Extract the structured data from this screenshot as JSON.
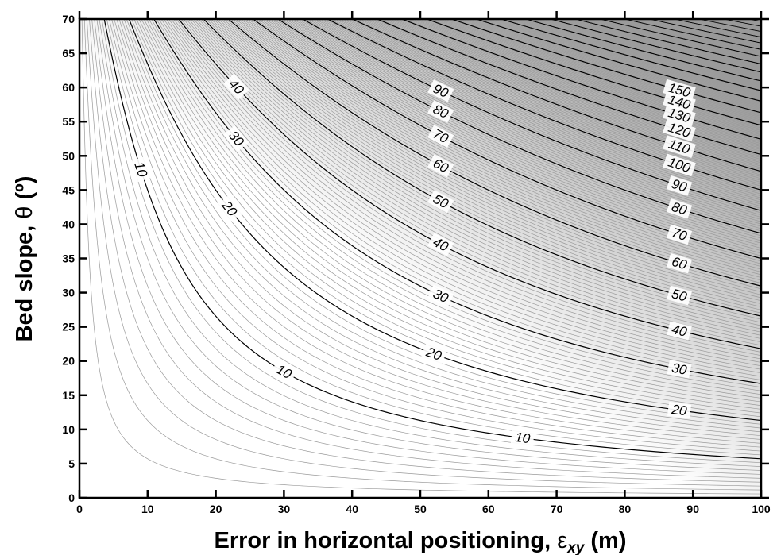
{
  "chart_data": {
    "type": "contour",
    "xlabel_main": "Error in horizontal positioning, ",
    "xlabel_symbol": "ε",
    "xlabel_subscript": "xy",
    "xlabel_unit": " (m)",
    "ylabel_main": "Bed slope, ",
    "ylabel_symbol": "θ",
    "ylabel_unit": " (º)",
    "xlim": [
      0,
      100
    ],
    "ylim": [
      0,
      70
    ],
    "x_ticks": [
      0,
      10,
      20,
      30,
      40,
      50,
      60,
      70,
      80,
      90,
      100
    ],
    "y_ticks": [
      0,
      5,
      10,
      15,
      20,
      25,
      30,
      35,
      40,
      45,
      50,
      55,
      60,
      65,
      70
    ],
    "contour_function": "z = x * tan(theta)",
    "minor_interval": 1,
    "major_interval": 10,
    "contour_labels": [
      {
        "text": "10",
        "x": 65,
        "level": 10
      },
      {
        "text": "20",
        "x": 88,
        "level": 20
      },
      {
        "text": "30",
        "x": 88,
        "level": 30
      },
      {
        "text": "40",
        "x": 88,
        "level": 40
      },
      {
        "text": "50",
        "x": 88,
        "level": 50
      },
      {
        "text": "60",
        "x": 88,
        "level": 60
      },
      {
        "text": "70",
        "x": 88,
        "level": 70
      },
      {
        "text": "80",
        "x": 88,
        "level": 80
      },
      {
        "text": "90",
        "x": 88,
        "level": 90
      },
      {
        "text": "100",
        "x": 88,
        "level": 100
      },
      {
        "text": "110",
        "x": 88,
        "level": 110
      },
      {
        "text": "120",
        "x": 88,
        "level": 120
      },
      {
        "text": "130",
        "x": 88,
        "level": 130
      },
      {
        "text": "140",
        "x": 88,
        "level": 140
      },
      {
        "text": "150",
        "x": 88,
        "level": 150
      },
      {
        "text": "10",
        "x": 30,
        "level": 10
      },
      {
        "text": "20",
        "x": 52,
        "level": 20
      },
      {
        "text": "30",
        "x": 53,
        "level": 30
      },
      {
        "text": "40",
        "x": 53,
        "level": 40
      },
      {
        "text": "50",
        "x": 53,
        "level": 50
      },
      {
        "text": "60",
        "x": 53,
        "level": 60
      },
      {
        "text": "70",
        "x": 53,
        "level": 70
      },
      {
        "text": "80",
        "x": 53,
        "level": 80
      },
      {
        "text": "90",
        "x": 53,
        "level": 90
      },
      {
        "text": "10",
        "x": 9,
        "level": 10
      },
      {
        "text": "20",
        "x": 22,
        "level": 20
      },
      {
        "text": "30",
        "x": 23,
        "level": 30
      },
      {
        "text": "40",
        "x": 23,
        "level": 40
      }
    ]
  }
}
